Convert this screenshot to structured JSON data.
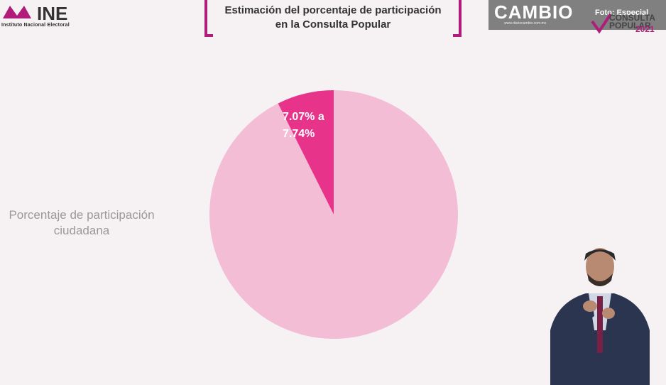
{
  "header": {
    "logo_text": "INE",
    "logo_subtitle": "Instituto Nacional Electoral",
    "title_line1": "Estimación del porcentaje de participación",
    "title_line2": "en la Consulta Popular"
  },
  "watermark": {
    "brand": "CAMBIO",
    "url": "www.diariocambio.com.mx",
    "credit": "Foto: Especial",
    "badge_text": "CONSULTA POPULAR",
    "badge_year": "2021"
  },
  "colors": {
    "slice_main": "#f4bdd6",
    "slice_small": "#e8338a",
    "accent": "#b01c7a"
  },
  "chart_data": {
    "type": "pie",
    "title": "Estimación del porcentaje de participación en la Consulta Popular",
    "legend_label": "Porcentaje de participación ciudadana",
    "slices": [
      {
        "name": "",
        "value": 7.4,
        "label": "7.07% a 7.74%",
        "color": "#e8338a"
      },
      {
        "name": "",
        "value": 92.6,
        "label": "",
        "color": "#f4bdd6"
      }
    ]
  }
}
